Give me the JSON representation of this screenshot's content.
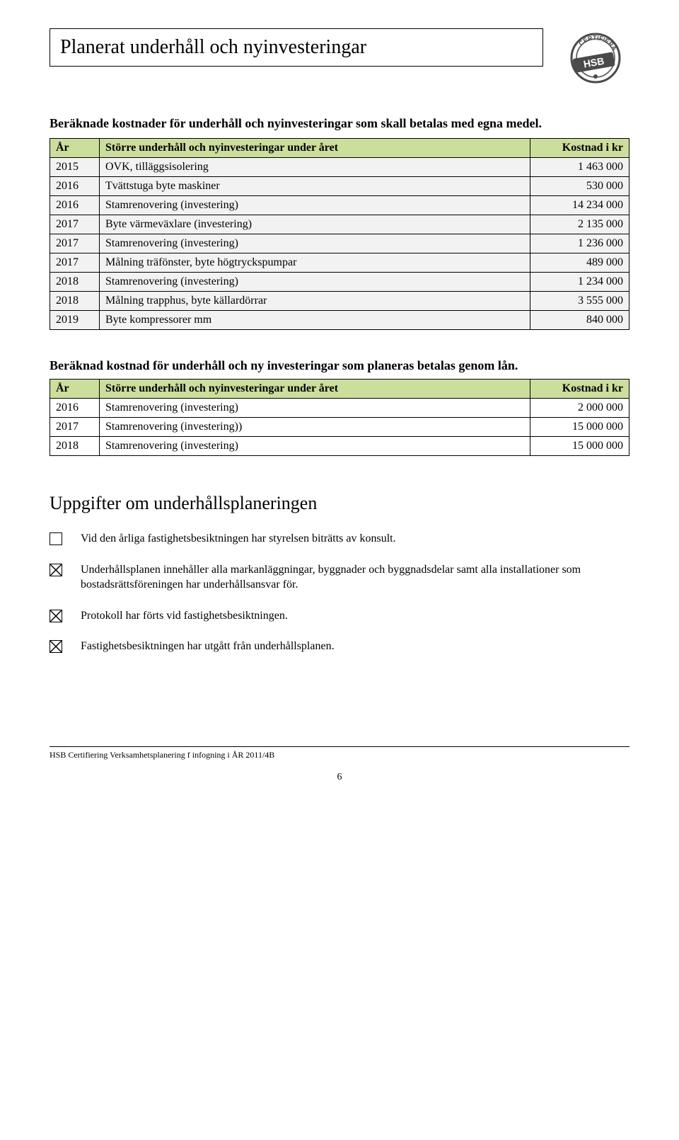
{
  "page": {
    "title": "Planerat underhåll och nyinvesteringar",
    "intro": "Beräknade kostnader för underhåll och nyinvesteringar som skall betalas med egna medel.",
    "footer": "HSB Certifiering Verksamhetsplanering f infogning i ÅR 2011/4B",
    "page_number": "6"
  },
  "table1": {
    "headers": {
      "year": "År",
      "desc": "Större underhåll och nyinvesteringar under året",
      "cost": "Kostnad i kr"
    },
    "rows": [
      {
        "year": "2015",
        "desc": "OVK, tilläggsisolering",
        "cost": "1 463 000"
      },
      {
        "year": "2016",
        "desc": "Tvättstuga byte maskiner",
        "cost": "530 000"
      },
      {
        "year": "2016",
        "desc": "Stamrenovering (investering)",
        "cost": "14 234 000"
      },
      {
        "year": "2017",
        "desc": "Byte värmeväxlare (investering)",
        "cost": "2 135 000"
      },
      {
        "year": "2017",
        "desc": "Stamrenovering (investering)",
        "cost": "1 236 000"
      },
      {
        "year": "2017",
        "desc": "Målning träfönster, byte högtryckspumpar",
        "cost": "489 000"
      },
      {
        "year": "2018",
        "desc": "Stamrenovering (investering)",
        "cost": "1 234 000"
      },
      {
        "year": "2018",
        "desc": "Målning trapphus, byte källardörrar",
        "cost": "3 555 000"
      },
      {
        "year": "2019",
        "desc": "Byte kompressorer mm",
        "cost": "840 000"
      }
    ]
  },
  "section2": {
    "heading": "Beräknad kostnad för underhåll och ny investeringar som planeras betalas genom lån."
  },
  "table2": {
    "headers": {
      "year": "År",
      "desc": "Större underhåll och nyinvesteringar under året",
      "cost": "Kostnad i kr"
    },
    "rows": [
      {
        "year": "2016",
        "desc": "Stamrenovering (investering)",
        "cost": "2 000 000"
      },
      {
        "year": "2017",
        "desc": "Stamrenovering (investering))",
        "cost": "15 000 000"
      },
      {
        "year": "2018",
        "desc": "Stamrenovering (investering)",
        "cost": "15 000 000"
      }
    ]
  },
  "section3": {
    "heading": "Uppgifter om underhållsplaneringen",
    "items": [
      {
        "checked": false,
        "text": "Vid den årliga fastighetsbesiktningen har styrelsen biträtts av konsult."
      },
      {
        "checked": true,
        "text": "Underhållsplanen innehåller alla markanläggningar, byggnader och byggnadsdelar samt alla installationer som bostadsrättsföreningen har underhållsansvar för."
      },
      {
        "checked": true,
        "text": "Protokoll har förts vid fastighetsbesiktningen."
      },
      {
        "checked": true,
        "text": "Fastighetsbesiktningen har utgått från underhållsplanen."
      }
    ]
  },
  "stamp": {
    "label": "HSB",
    "arc_top": "CERTIFIERAD"
  },
  "colors": {
    "header_bg": "#ccde9c",
    "row_shade": "#f2f2f2",
    "border": "#000000",
    "text": "#000000",
    "background": "#ffffff"
  }
}
